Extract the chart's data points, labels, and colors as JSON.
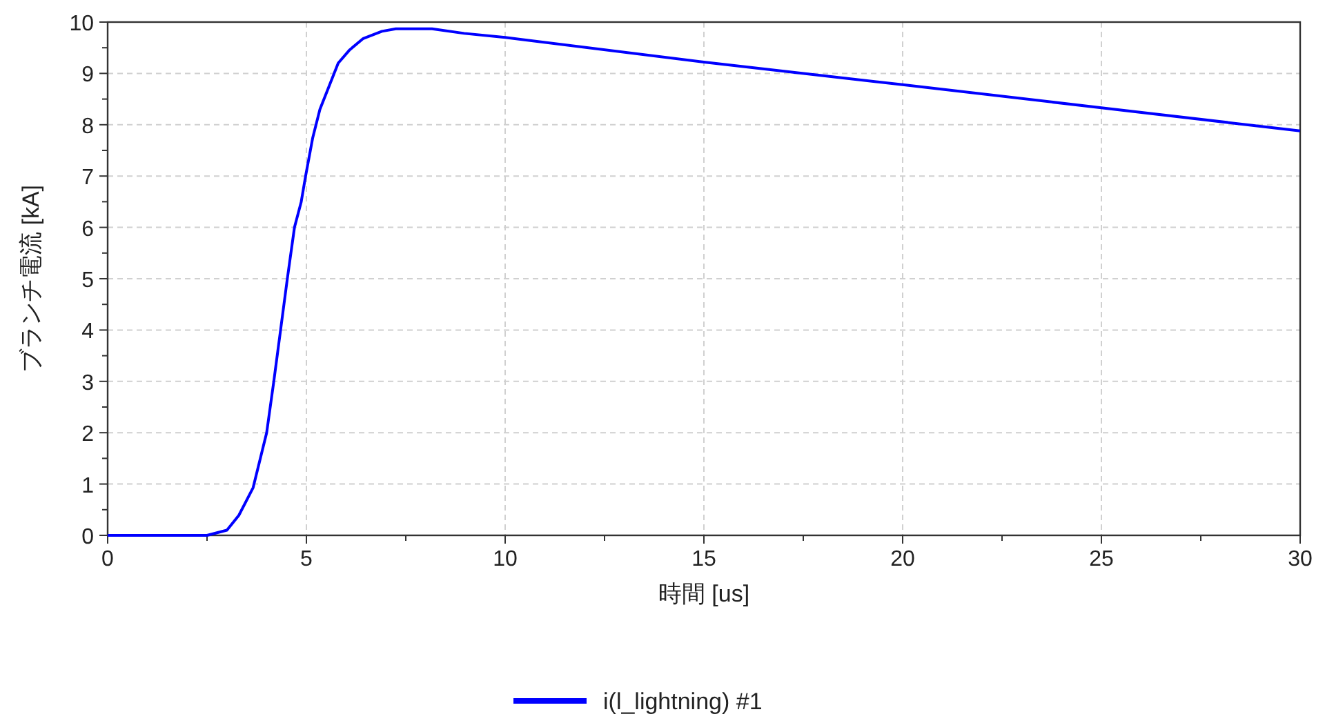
{
  "chart_data": {
    "type": "line",
    "xlabel": "時間 [us]",
    "ylabel": "ブランチ電流 [kA]",
    "xlim": [
      0,
      30
    ],
    "ylim": [
      0,
      10
    ],
    "xticks": [
      0,
      {
        "value": 2.5,
        "label": null
      },
      5,
      {
        "value": 7.5,
        "label": null
      },
      10,
      {
        "value": 12.5,
        "label": null
      },
      15,
      {
        "value": 17.5,
        "label": null
      },
      20,
      {
        "value": 22.5,
        "label": null
      },
      25,
      {
        "value": 27.5,
        "label": null
      },
      30
    ],
    "yticks": [
      0,
      {
        "value": 0.5,
        "label": null
      },
      1,
      {
        "value": 1.5,
        "label": null
      },
      2,
      {
        "value": 2.5,
        "label": null
      },
      3,
      {
        "value": 3.5,
        "label": null
      },
      4,
      {
        "value": 4.5,
        "label": null
      },
      5,
      {
        "value": 5.5,
        "label": null
      },
      6,
      {
        "value": 6.5,
        "label": null
      },
      7,
      {
        "value": 7.5,
        "label": null
      },
      8,
      {
        "value": 8.5,
        "label": null
      },
      9,
      {
        "value": 9.5,
        "label": null
      },
      10
    ],
    "grid": true,
    "legend": "bottom",
    "series": [
      {
        "name": "i(l_lightning) #1",
        "color": "#0000ff",
        "x": [
          0,
          2.5,
          3.0,
          3.3,
          3.66,
          4.0,
          4.18,
          4.35,
          4.52,
          4.7,
          4.87,
          4.98,
          5.16,
          5.34,
          5.57,
          5.8,
          6.09,
          6.43,
          6.9,
          7.25,
          8.16,
          8.97,
          10.0,
          15,
          20,
          25,
          30
        ],
        "values": [
          0,
          0,
          0.1,
          0.39,
          0.93,
          2.0,
          3.0,
          4.0,
          5.0,
          6.0,
          6.5,
          7.0,
          7.75,
          8.3,
          8.75,
          9.2,
          9.46,
          9.68,
          9.82,
          9.87,
          9.87,
          9.78,
          9.7,
          9.22,
          8.78,
          8.33,
          7.88
        ]
      }
    ]
  }
}
